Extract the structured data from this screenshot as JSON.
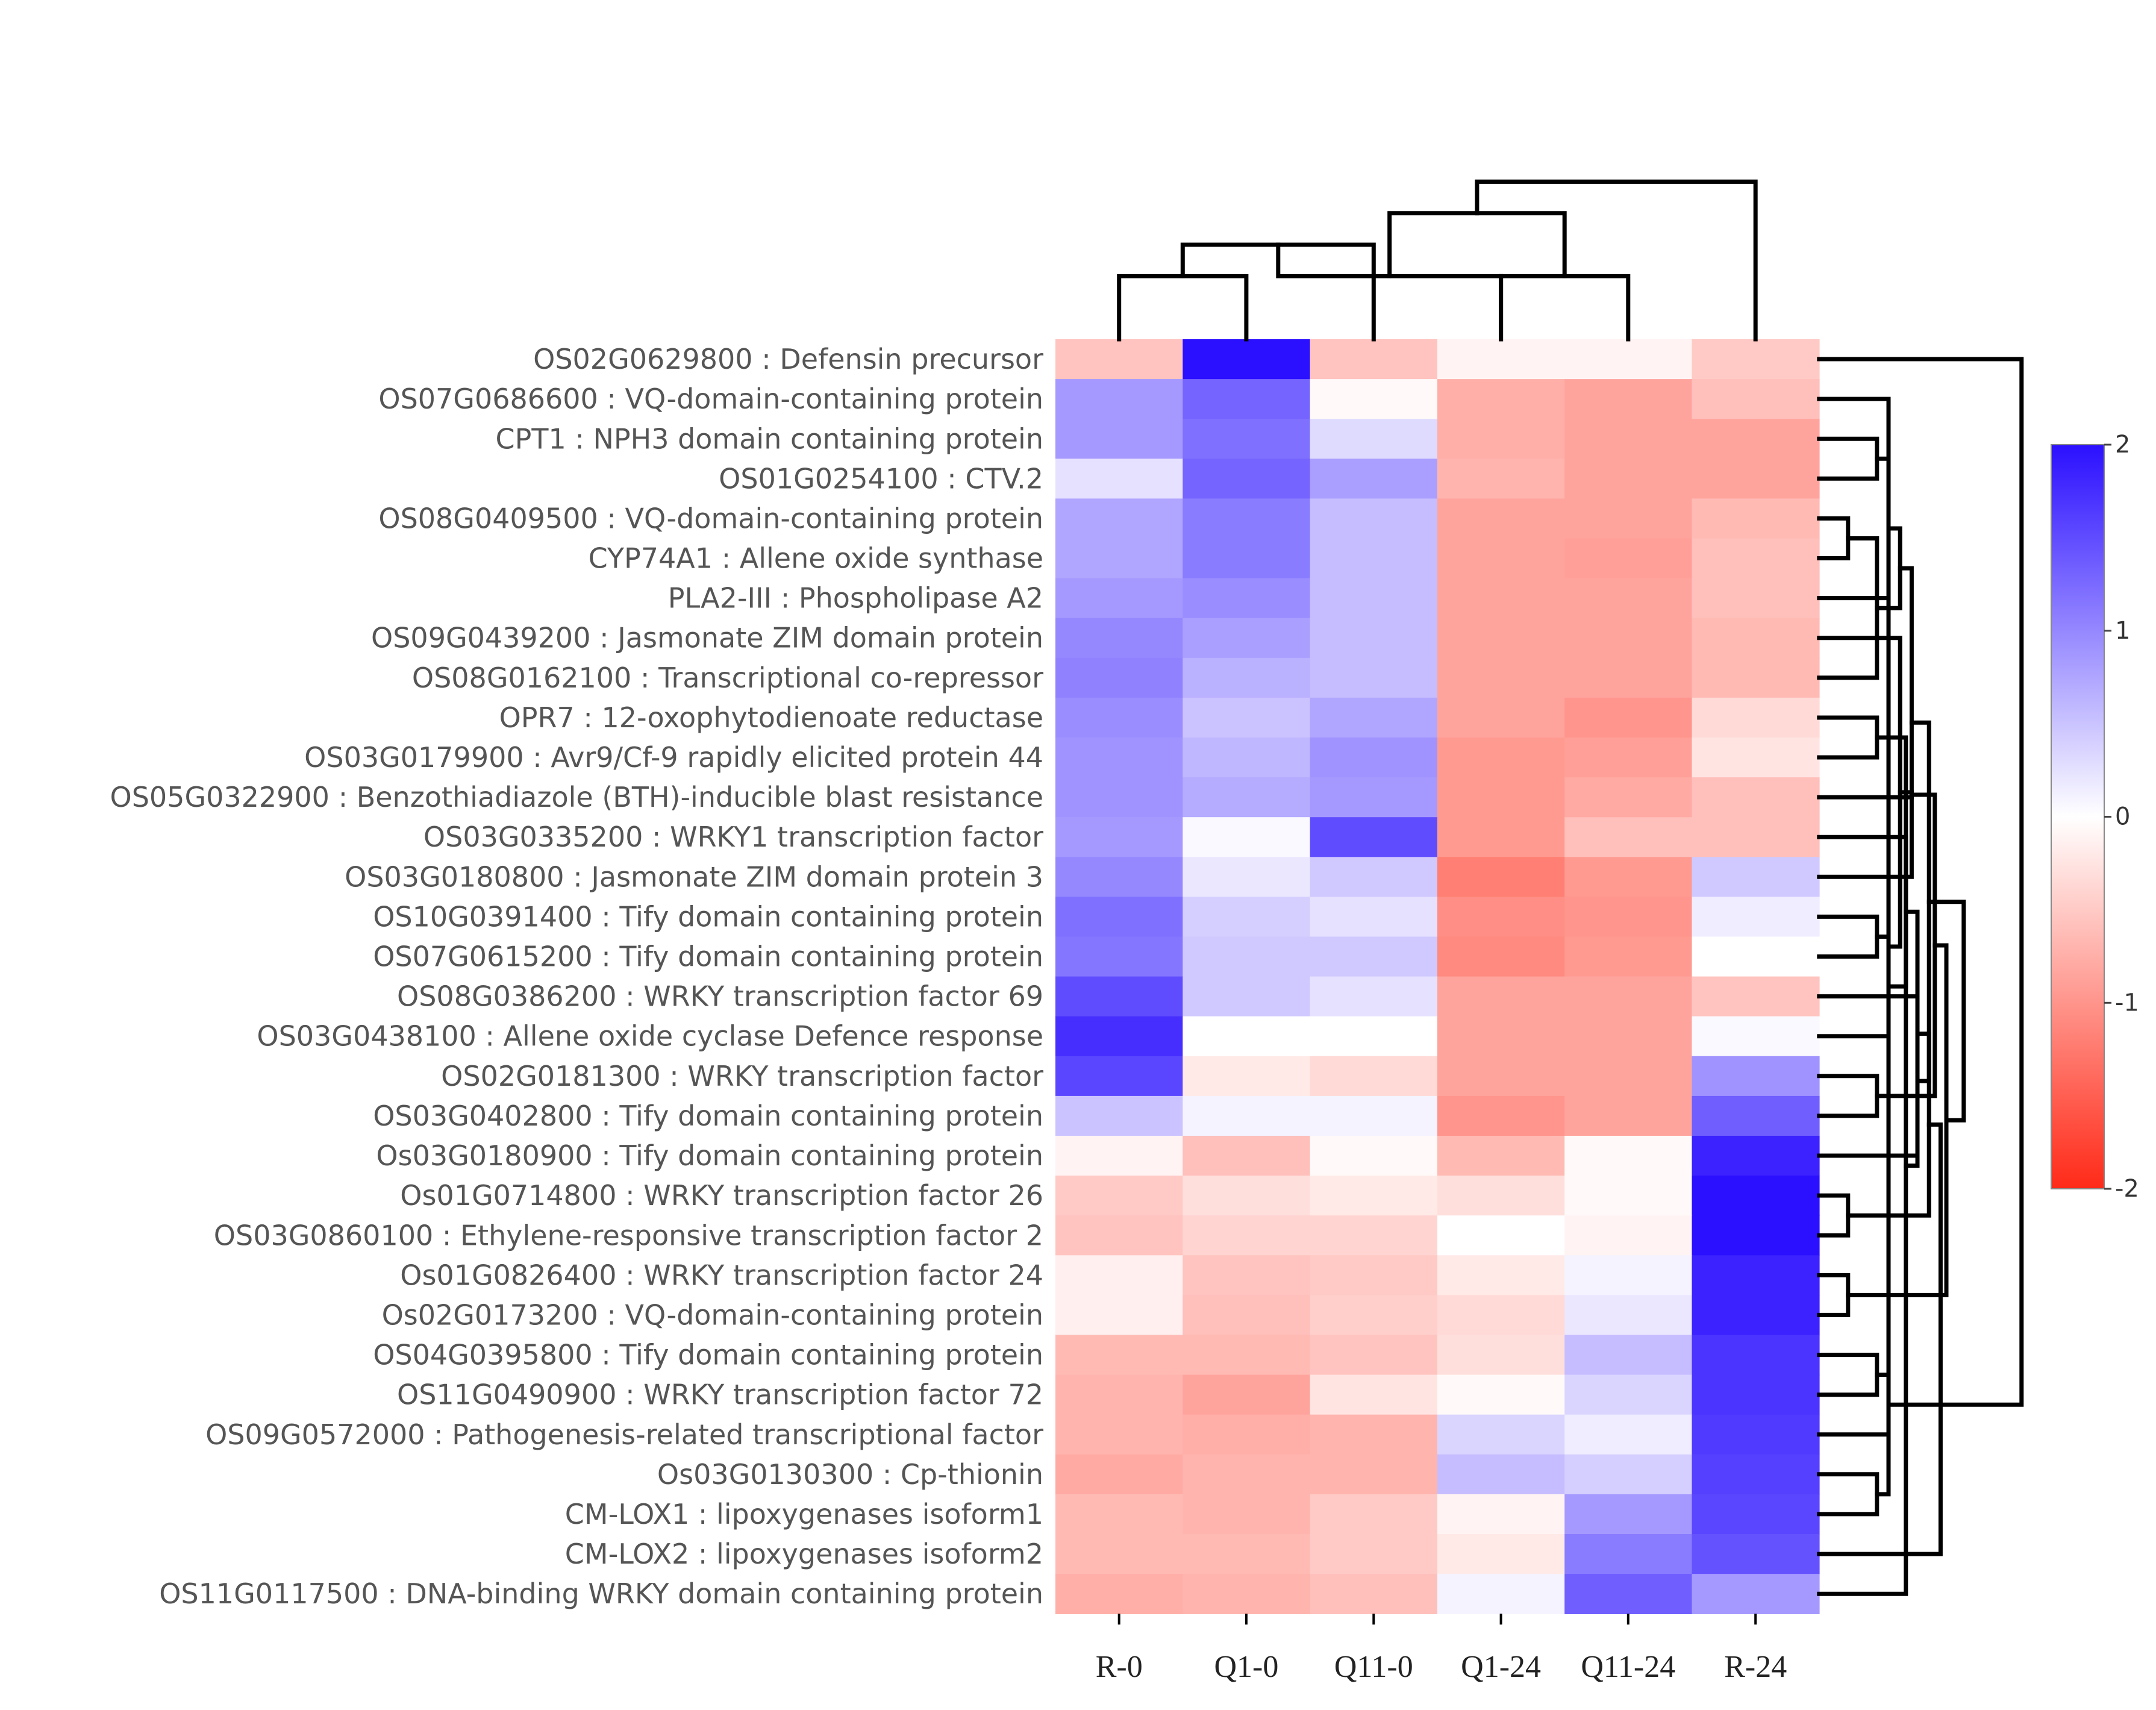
{
  "chart_data": {
    "type": "heatmap",
    "title": "",
    "columns": [
      "R-0",
      "Q1-0",
      "Q11-0",
      "Q1-24",
      "Q11-24",
      "R-24"
    ],
    "rows": [
      "OS02G0629800 : Defensin precursor",
      "OS07G0686600 : VQ-domain-containing protein",
      "CPT1 : NPH3 domain containing protein",
      "OS01G0254100 : CTV.2",
      "OS08G0409500 : VQ-domain-containing protein",
      "CYP74A1 : Allene oxide synthase",
      "PLA2-III : Phospholipase A2 ",
      "OS09G0439200 : Jasmonate ZIM domain protein",
      "OS08G0162100 : Transcriptional co-repressor",
      "OPR7 : 12-oxophytodienoate reductase",
      "OS03G0179900 : Avr9/Cf-9 rapidly elicited protein 44",
      "OS05G0322900 : Benzothiadiazole (BTH)-inducible blast resistance",
      "OS03G0335200 : WRKY1 transcription factor",
      "OS03G0180800 : Jasmonate ZIM domain protein 3",
      "OS10G0391400 : Tify domain containing protein",
      "OS07G0615200 : Tify domain containing protein",
      "OS08G0386200 : WRKY transcription factor 69",
      "OS03G0438100 : Allene oxide cyclase Defence response",
      "OS02G0181300 : WRKY transcription factor",
      "OS03G0402800 : Tify domain containing protein",
      "Os03G0180900 : Tify domain containing protein",
      "Os01G0714800 : WRKY transcription factor 26",
      "OS03G0860100 : Ethylene-responsive transcription factor 2",
      "Os01G0826400 : WRKY transcription factor 24",
      "Os02G0173200 : VQ-domain-containing protein",
      "OS04G0395800 : Tify domain containing protein",
      "OS11G0490900 : WRKY transcription factor 72",
      "OS09G0572000 : Pathogenesis-related transcriptional factor",
      "Os03G0130300 : Cp-thionin",
      "CM-LOX1 : lipoxygenases isoform1",
      "CM-LOX2 : lipoxygenases isoform2",
      "OS11G0117500 : DNA-binding WRKY domain containing protein"
    ],
    "values": [
      [
        -0.55,
        2.0,
        -0.55,
        -0.1,
        -0.1,
        -0.5
      ],
      [
        0.85,
        1.3,
        -0.05,
        -0.75,
        -0.85,
        -0.6
      ],
      [
        0.85,
        1.2,
        0.3,
        -0.75,
        -0.85,
        -0.85
      ],
      [
        0.25,
        1.3,
        0.8,
        -0.7,
        -0.85,
        -0.85
      ],
      [
        0.75,
        1.1,
        0.55,
        -0.85,
        -0.85,
        -0.65
      ],
      [
        0.75,
        1.1,
        0.55,
        -0.85,
        -0.9,
        -0.6
      ],
      [
        0.85,
        0.95,
        0.55,
        -0.85,
        -0.85,
        -0.6
      ],
      [
        1.0,
        0.8,
        0.55,
        -0.85,
        -0.85,
        -0.65
      ],
      [
        1.05,
        0.65,
        0.55,
        -0.85,
        -0.85,
        -0.65
      ],
      [
        0.95,
        0.5,
        0.75,
        -0.85,
        -1.0,
        -0.35
      ],
      [
        0.9,
        0.6,
        0.9,
        -0.95,
        -0.9,
        -0.25
      ],
      [
        0.9,
        0.7,
        0.85,
        -0.95,
        -0.8,
        -0.6
      ],
      [
        0.85,
        0.05,
        1.5,
        -0.95,
        -0.6,
        -0.6
      ],
      [
        1.0,
        0.2,
        0.45,
        -1.2,
        -0.95,
        0.45
      ],
      [
        1.2,
        0.4,
        0.25,
        -1.05,
        -1.0,
        0.15
      ],
      [
        1.15,
        0.45,
        0.45,
        -1.1,
        -0.95,
        0.0
      ],
      [
        1.5,
        0.45,
        0.25,
        -0.85,
        -0.85,
        -0.55
      ],
      [
        1.75,
        0.0,
        0.0,
        -0.85,
        -0.85,
        0.05
      ],
      [
        1.55,
        -0.2,
        -0.35,
        -0.85,
        -0.85,
        0.9
      ],
      [
        0.5,
        0.1,
        0.1,
        -1.0,
        -0.85,
        1.35
      ],
      [
        -0.1,
        -0.6,
        -0.05,
        -0.65,
        -0.05,
        1.85
      ],
      [
        -0.5,
        -0.3,
        -0.2,
        -0.3,
        -0.05,
        2.0
      ],
      [
        -0.55,
        -0.4,
        -0.4,
        0.0,
        -0.1,
        2.0
      ],
      [
        -0.15,
        -0.55,
        -0.5,
        -0.2,
        0.1,
        1.85
      ],
      [
        -0.15,
        -0.6,
        -0.45,
        -0.35,
        0.2,
        1.85
      ],
      [
        -0.65,
        -0.65,
        -0.55,
        -0.3,
        0.55,
        1.7
      ],
      [
        -0.7,
        -0.85,
        -0.25,
        -0.05,
        0.35,
        1.7
      ],
      [
        -0.7,
        -0.75,
        -0.7,
        0.35,
        0.15,
        1.65
      ],
      [
        -0.8,
        -0.7,
        -0.7,
        0.55,
        0.4,
        1.6
      ],
      [
        -0.65,
        -0.7,
        -0.5,
        -0.1,
        0.85,
        1.55
      ],
      [
        -0.65,
        -0.65,
        -0.5,
        -0.2,
        1.1,
        1.45
      ],
      [
        -0.75,
        -0.7,
        -0.6,
        0.1,
        1.35,
        0.85
      ]
    ],
    "colorbar": {
      "min": -2,
      "max": 2,
      "colors": [
        "#ff2a18",
        "#ffffff",
        "#2b10ff"
      ],
      "ticks": [
        "-2",
        "-1",
        "0",
        "1",
        "2"
      ],
      "tick_values": [
        -2,
        -1,
        0,
        1,
        2
      ]
    },
    "column_dendrogram": [
      [
        0,
        1,
        2
      ],
      [
        6,
        2,
        3
      ],
      [
        7,
        3,
        2
      ],
      [
        3,
        4,
        2
      ],
      [
        9,
        8,
        4
      ],
      [
        10,
        5,
        5
      ]
    ],
    "row_dendrogram": [
      [
        28,
        29,
        2
      ],
      [
        2,
        3,
        2
      ],
      [
        1,
        32,
        2
      ],
      [
        4,
        5,
        1
      ],
      [
        6,
        33,
        2
      ],
      [
        34,
        7,
        2
      ],
      [
        35,
        8,
        2
      ],
      [
        9,
        10,
        2
      ],
      [
        37,
        11,
        2
      ],
      [
        36,
        38,
        2
      ],
      [
        31,
        39,
        3
      ],
      [
        14,
        15,
        2
      ],
      [
        13,
        41,
        2
      ],
      [
        42,
        16,
        2
      ],
      [
        43,
        17,
        2
      ],
      [
        18,
        19,
        2
      ],
      [
        44,
        45,
        3
      ],
      [
        12,
        46,
        3
      ],
      [
        40,
        47,
        4
      ],
      [
        21,
        22,
        1
      ],
      [
        20,
        49,
        2
      ],
      [
        23,
        24,
        1
      ],
      [
        25,
        26,
        2
      ],
      [
        51,
        52,
        2
      ],
      [
        50,
        53,
        2
      ],
      [
        27,
        54,
        2
      ],
      [
        55,
        30,
        3
      ],
      [
        56,
        48,
        5
      ],
      [
        0,
        57,
        7
      ]
    ]
  }
}
